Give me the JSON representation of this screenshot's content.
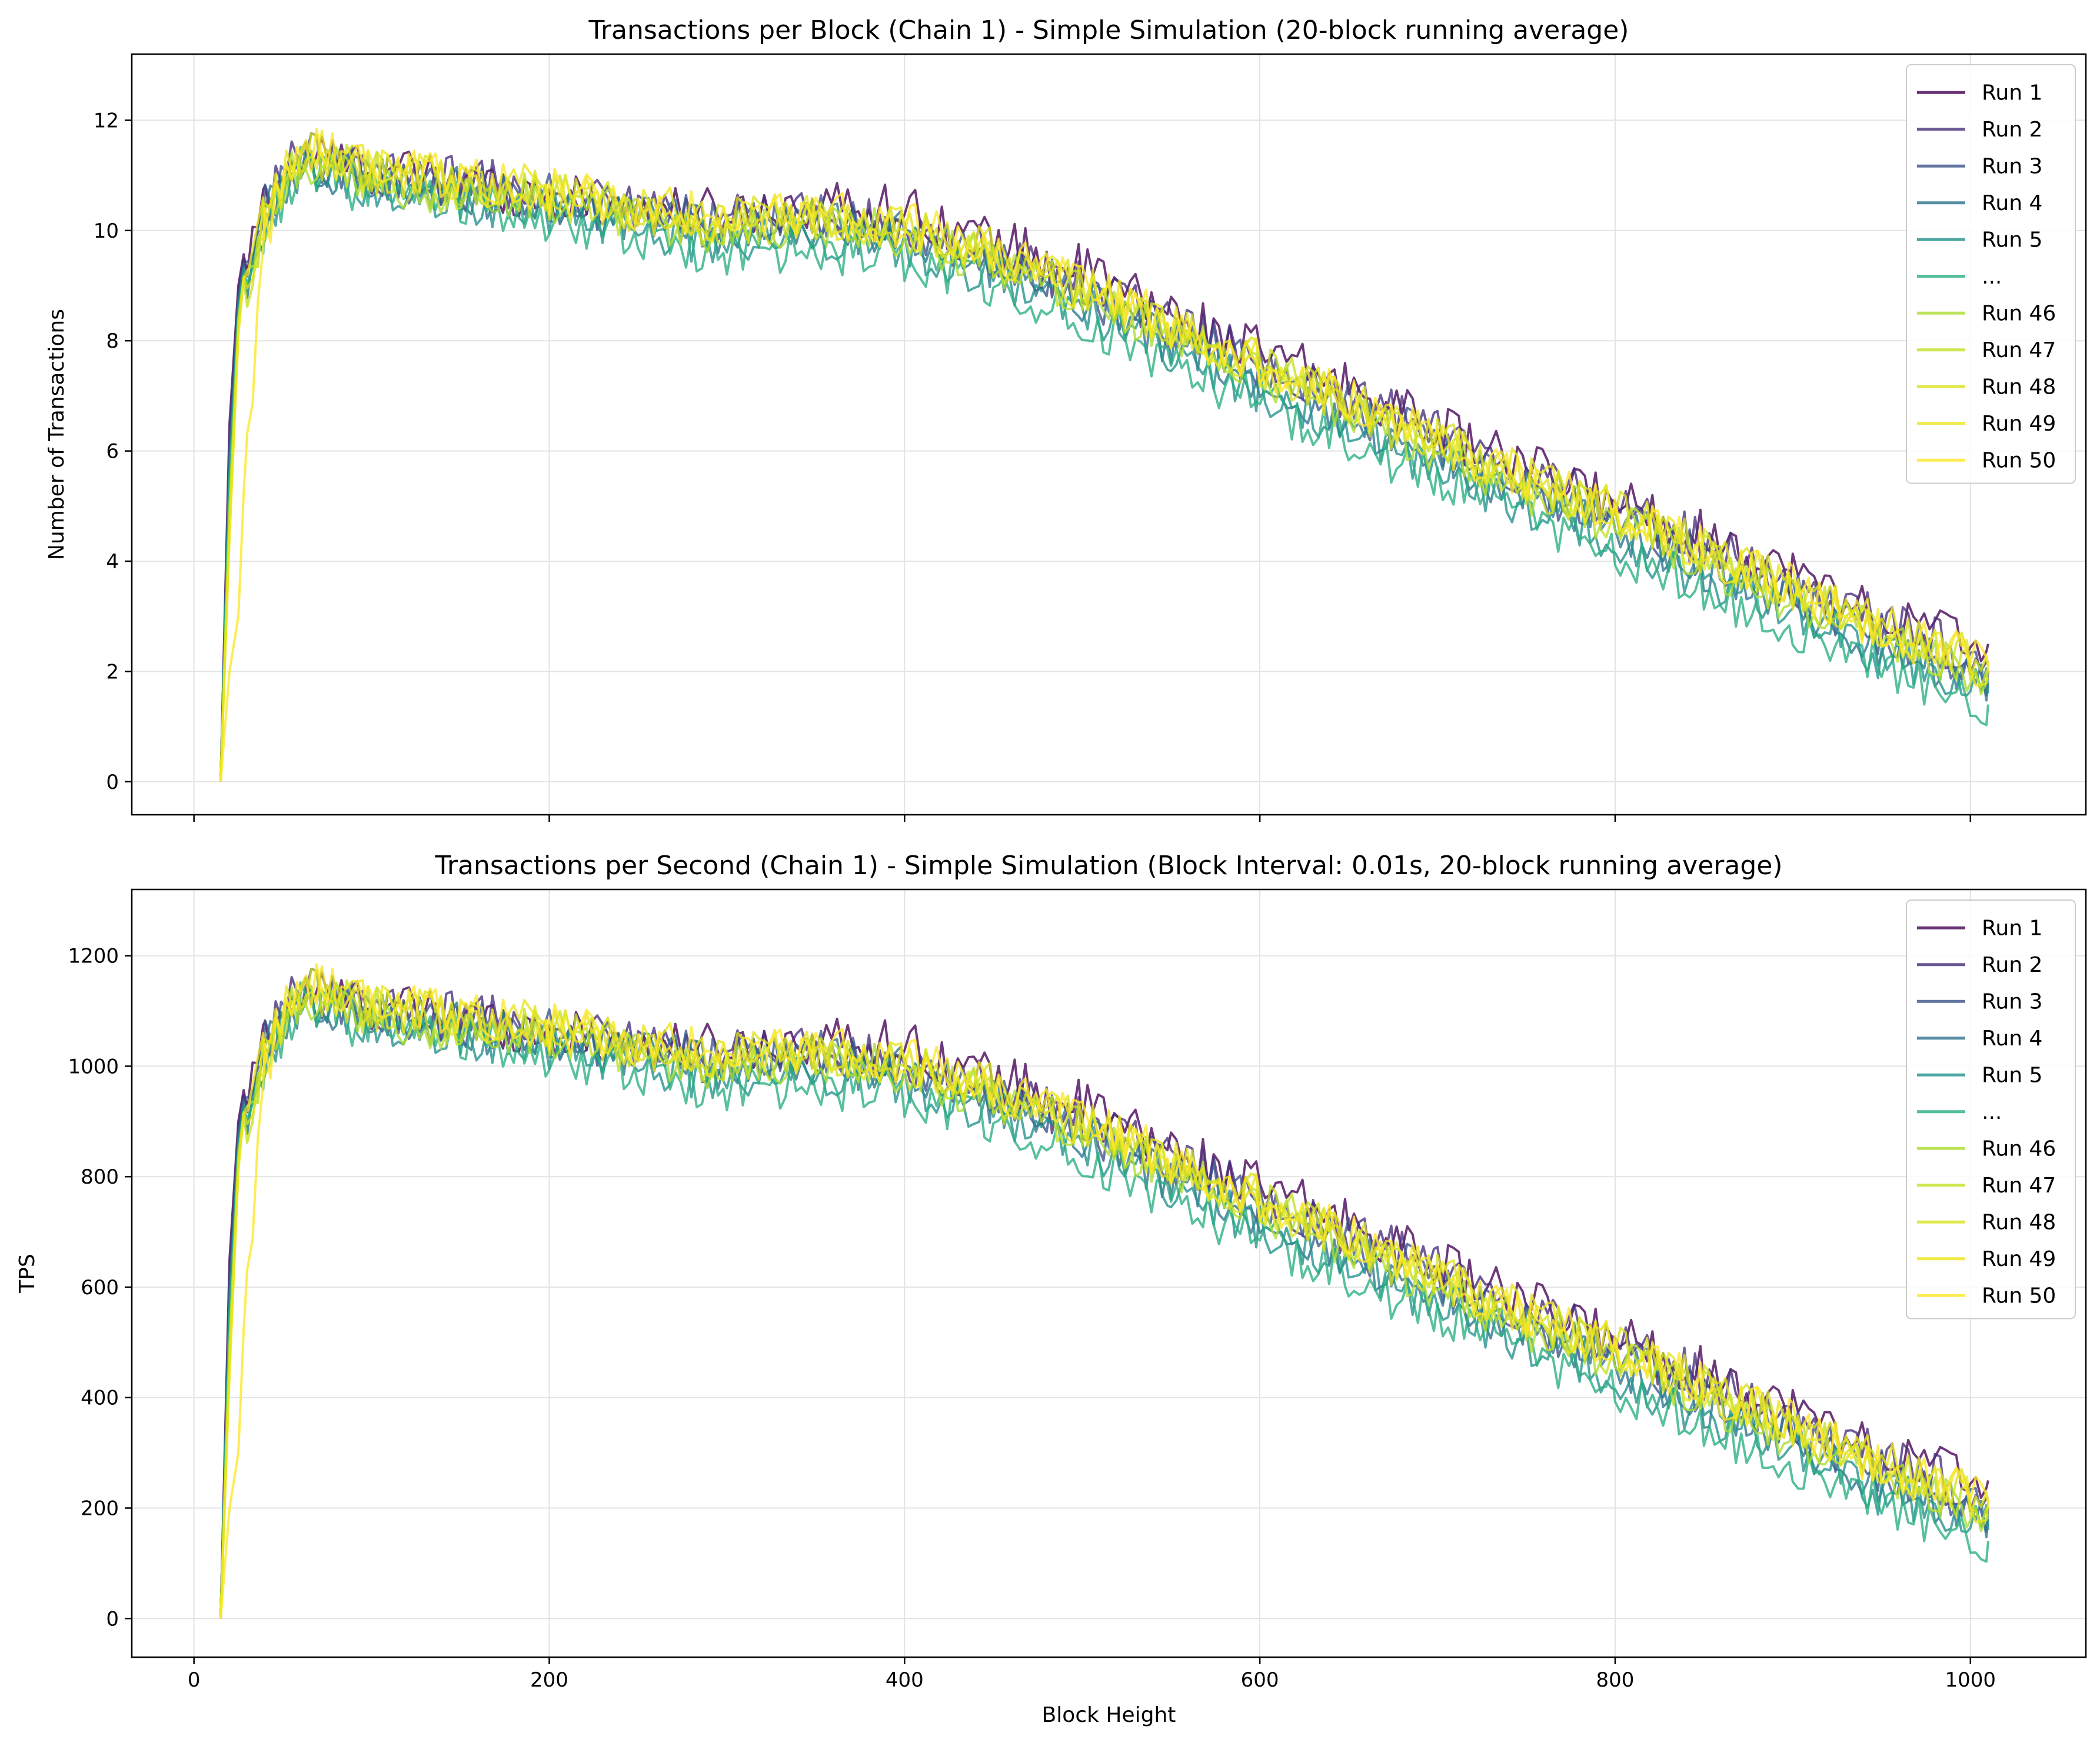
{
  "chart_data": [
    {
      "type": "line",
      "title": "Transactions per Block (Chain 1) - Simple Simulation (20-block running average)",
      "xlabel": "",
      "ylabel": "Number of Transactions",
      "xlim": [
        -35,
        1065
      ],
      "ylim": [
        -0.6,
        13.2
      ],
      "xticks": [
        0,
        200,
        400,
        600,
        800,
        1000
      ],
      "yticks": [
        0,
        2,
        4,
        6,
        8,
        10,
        12
      ],
      "xticklabels_visible": false,
      "grid": true,
      "legend": "top-right",
      "x": [
        15,
        20,
        25,
        30,
        40,
        60,
        80,
        100,
        150,
        200,
        250,
        300,
        350,
        400,
        450,
        500,
        550,
        600,
        650,
        700,
        750,
        800,
        850,
        900,
        950,
        1000,
        1010
      ],
      "series_count": 50,
      "series": [
        {
          "name": "Run 1",
          "color": "#440154",
          "values": [
            0,
            6.5,
            9.0,
            9.4,
            10.6,
            11.4,
            11.3,
            11.1,
            10.9,
            10.6,
            10.4,
            10.3,
            10.5,
            10.4,
            9.8,
            9.3,
            8.5,
            7.8,
            7.2,
            6.4,
            5.7,
            5.1,
            4.5,
            3.8,
            3.0,
            2.6,
            2.5
          ]
        },
        {
          "name": "Run 2",
          "color": "#472d7b",
          "values": [
            0,
            6.2,
            8.9,
            9.3,
            10.5,
            11.4,
            11.2,
            11.0,
            10.9,
            10.7,
            10.4,
            10.2,
            10.3,
            10.1,
            9.6,
            9.0,
            8.3,
            7.6,
            7.0,
            6.3,
            5.6,
            5.0,
            4.3,
            3.6,
            2.9,
            2.3,
            2.2
          ]
        },
        {
          "name": "Run 3",
          "color": "#3b528b",
          "values": [
            0,
            6.0,
            8.8,
            9.2,
            10.4,
            11.3,
            11.2,
            11.0,
            10.8,
            10.6,
            10.3,
            10.1,
            10.2,
            10.0,
            9.5,
            8.9,
            8.2,
            7.5,
            6.8,
            6.1,
            5.4,
            4.8,
            4.1,
            3.4,
            2.7,
            2.1,
            2.0
          ]
        },
        {
          "name": "Run 4",
          "color": "#2c728e",
          "values": [
            0,
            5.8,
            8.7,
            9.2,
            10.3,
            11.2,
            11.1,
            10.9,
            10.7,
            10.5,
            10.2,
            10.0,
            10.1,
            9.9,
            9.4,
            8.8,
            8.0,
            7.3,
            6.6,
            5.9,
            5.2,
            4.6,
            3.9,
            3.2,
            2.5,
            1.9,
            1.8
          ]
        },
        {
          "name": "Run 5",
          "color": "#21918c",
          "values": [
            0,
            5.6,
            8.6,
            9.1,
            10.2,
            11.2,
            11.0,
            10.8,
            10.6,
            10.3,
            10.0,
            9.8,
            9.9,
            9.7,
            9.2,
            8.6,
            7.8,
            7.1,
            6.4,
            5.7,
            5.0,
            4.4,
            3.7,
            3.0,
            2.3,
            1.7,
            1.6
          ]
        },
        {
          "name": "...",
          "color": "#28ae80",
          "values": [
            0,
            5.5,
            8.5,
            9.0,
            10.1,
            11.1,
            10.9,
            10.7,
            10.5,
            10.2,
            9.9,
            9.6,
            9.7,
            9.5,
            9.0,
            8.4,
            7.6,
            6.9,
            6.2,
            5.5,
            4.8,
            4.2,
            3.5,
            2.8,
            2.1,
            1.5,
            1.4
          ]
        },
        {
          "name": "Run 46",
          "color": "#addc30",
          "values": [
            0,
            5.0,
            8.4,
            9.0,
            10.2,
            11.3,
            11.1,
            10.9,
            10.7,
            10.5,
            10.2,
            10.0,
            10.1,
            9.9,
            9.4,
            8.9,
            8.1,
            7.4,
            6.7,
            6.0,
            5.3,
            4.7,
            4.0,
            3.3,
            2.6,
            2.0,
            1.9
          ]
        },
        {
          "name": "Run 47",
          "color": "#c4e021",
          "values": [
            0,
            4.8,
            8.3,
            9.0,
            10.3,
            11.4,
            11.2,
            11.0,
            10.8,
            10.6,
            10.3,
            10.1,
            10.2,
            10.0,
            9.5,
            8.9,
            8.2,
            7.5,
            6.8,
            6.1,
            5.4,
            4.8,
            4.1,
            3.4,
            2.7,
            2.1,
            2.0
          ]
        },
        {
          "name": "Run 48",
          "color": "#d8e219",
          "values": [
            0,
            4.6,
            8.2,
            9.1,
            10.4,
            11.4,
            11.2,
            11.1,
            10.9,
            10.7,
            10.4,
            10.2,
            10.3,
            10.1,
            9.6,
            9.0,
            8.3,
            7.6,
            6.9,
            6.2,
            5.5,
            4.9,
            4.2,
            3.5,
            2.8,
            2.2,
            2.1
          ]
        },
        {
          "name": "Run 49",
          "color": "#ece51b",
          "values": [
            0,
            4.4,
            8.1,
            9.1,
            10.5,
            11.5,
            11.3,
            11.1,
            10.9,
            10.7,
            10.4,
            10.2,
            10.3,
            10.1,
            9.6,
            9.0,
            8.3,
            7.6,
            6.9,
            6.2,
            5.5,
            4.9,
            4.2,
            3.5,
            2.8,
            2.2,
            2.1
          ]
        },
        {
          "name": "Run 50",
          "color": "#fde725",
          "values": [
            0,
            2.0,
            3.0,
            6.0,
            10.0,
            11.5,
            11.3,
            11.1,
            10.9,
            10.7,
            10.4,
            10.2,
            10.3,
            10.1,
            9.6,
            9.0,
            8.3,
            7.6,
            6.9,
            6.2,
            5.5,
            4.9,
            4.2,
            3.5,
            2.8,
            2.2,
            2.1
          ]
        }
      ]
    },
    {
      "type": "line",
      "title": "Transactions per Second (Chain 1) - Simple Simulation (Block Interval: 0.01s, 20-block running average)",
      "xlabel": "Block Height",
      "ylabel": "TPS",
      "xlim": [
        -35,
        1065
      ],
      "ylim": [
        -70,
        1320
      ],
      "xticks": [
        0,
        200,
        400,
        600,
        800,
        1000
      ],
      "yticks": [
        0,
        200,
        400,
        600,
        800,
        1000,
        1200
      ],
      "xticklabels_visible": true,
      "grid": true,
      "legend": "top-right",
      "x": [
        15,
        20,
        25,
        30,
        40,
        60,
        80,
        100,
        150,
        200,
        250,
        300,
        350,
        400,
        450,
        500,
        550,
        600,
        650,
        700,
        750,
        800,
        850,
        900,
        950,
        1000,
        1010
      ],
      "series_count": 50,
      "series": [
        {
          "name": "Run 1",
          "color": "#440154",
          "values": [
            0,
            650,
            900,
            940,
            1060,
            1140,
            1130,
            1110,
            1090,
            1060,
            1040,
            1030,
            1050,
            1040,
            980,
            930,
            850,
            780,
            720,
            640,
            570,
            510,
            450,
            380,
            300,
            260,
            250
          ]
        },
        {
          "name": "Run 2",
          "color": "#472d7b",
          "values": [
            0,
            620,
            890,
            930,
            1050,
            1140,
            1120,
            1100,
            1090,
            1070,
            1040,
            1020,
            1030,
            1010,
            960,
            900,
            830,
            760,
            700,
            630,
            560,
            500,
            430,
            360,
            290,
            230,
            220
          ]
        },
        {
          "name": "Run 3",
          "color": "#3b528b",
          "values": [
            0,
            600,
            880,
            920,
            1040,
            1130,
            1120,
            1100,
            1080,
            1060,
            1030,
            1010,
            1020,
            1000,
            950,
            890,
            820,
            750,
            680,
            610,
            540,
            480,
            410,
            340,
            270,
            210,
            200
          ]
        },
        {
          "name": "Run 4",
          "color": "#2c728e",
          "values": [
            0,
            580,
            870,
            920,
            1030,
            1120,
            1110,
            1090,
            1070,
            1050,
            1020,
            1000,
            1010,
            990,
            940,
            880,
            800,
            730,
            660,
            590,
            520,
            460,
            390,
            320,
            250,
            190,
            180
          ]
        },
        {
          "name": "Run 5",
          "color": "#21918c",
          "values": [
            0,
            560,
            860,
            910,
            1020,
            1120,
            1100,
            1080,
            1060,
            1030,
            1000,
            980,
            990,
            970,
            920,
            860,
            780,
            710,
            640,
            570,
            500,
            440,
            370,
            300,
            230,
            170,
            160
          ]
        },
        {
          "name": "...",
          "color": "#28ae80",
          "values": [
            0,
            550,
            850,
            900,
            1010,
            1110,
            1090,
            1070,
            1050,
            1020,
            990,
            960,
            970,
            950,
            900,
            840,
            760,
            690,
            620,
            550,
            480,
            420,
            350,
            280,
            210,
            150,
            140
          ]
        },
        {
          "name": "Run 46",
          "color": "#addc30",
          "values": [
            0,
            500,
            840,
            900,
            1020,
            1130,
            1110,
            1090,
            1070,
            1050,
            1020,
            1000,
            1010,
            990,
            940,
            890,
            810,
            740,
            670,
            600,
            530,
            470,
            400,
            330,
            260,
            200,
            190
          ]
        },
        {
          "name": "Run 47",
          "color": "#c4e021",
          "values": [
            0,
            480,
            830,
            900,
            1030,
            1140,
            1120,
            1100,
            1080,
            1060,
            1030,
            1010,
            1020,
            1000,
            950,
            890,
            820,
            750,
            680,
            610,
            540,
            480,
            410,
            340,
            270,
            210,
            200
          ]
        },
        {
          "name": "Run 48",
          "color": "#d8e219",
          "values": [
            0,
            460,
            820,
            910,
            1040,
            1140,
            1120,
            1110,
            1090,
            1070,
            1040,
            1020,
            1030,
            1010,
            960,
            900,
            830,
            760,
            690,
            620,
            550,
            490,
            420,
            350,
            280,
            220,
            210
          ]
        },
        {
          "name": "Run 49",
          "color": "#ece51b",
          "values": [
            0,
            440,
            810,
            910,
            1050,
            1150,
            1130,
            1110,
            1090,
            1070,
            1040,
            1020,
            1030,
            1010,
            960,
            900,
            830,
            760,
            690,
            620,
            550,
            490,
            420,
            350,
            280,
            220,
            210
          ]
        },
        {
          "name": "Run 50",
          "color": "#fde725",
          "values": [
            0,
            200,
            300,
            600,
            1000,
            1150,
            1130,
            1110,
            1090,
            1070,
            1040,
            1020,
            1030,
            1010,
            960,
            900,
            830,
            760,
            690,
            620,
            550,
            490,
            420,
            350,
            280,
            220,
            210
          ]
        }
      ]
    }
  ]
}
